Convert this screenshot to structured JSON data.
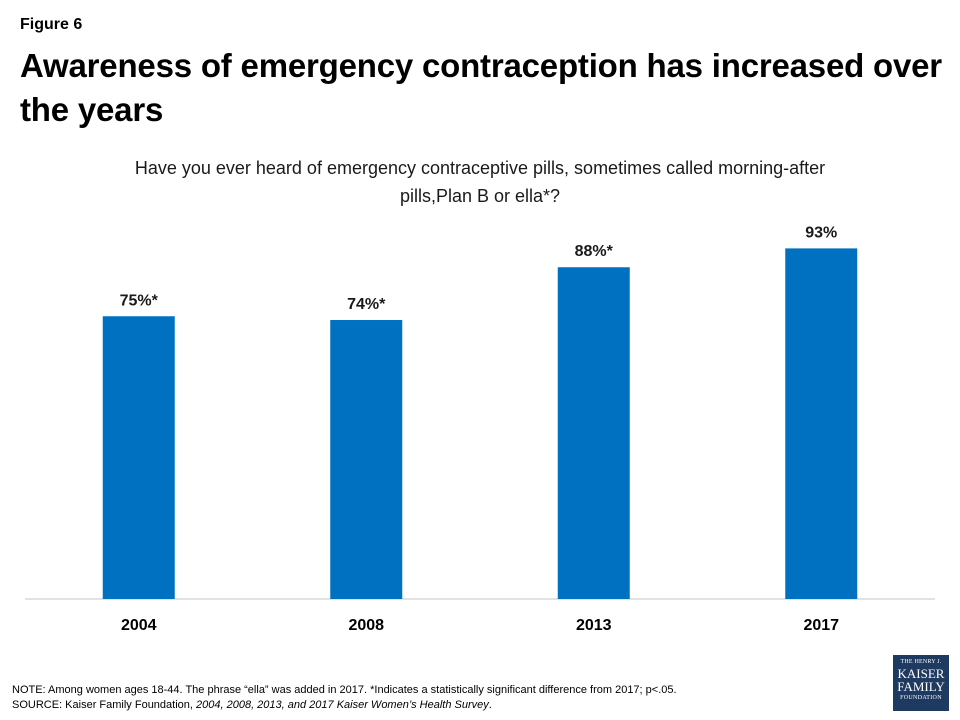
{
  "figure_label": "Figure 6",
  "title": "Awareness of emergency contraception has increased over the years",
  "question": "Have you ever heard of emergency contraceptive pills, sometimes called morning-after pills,Plan B or ella*?",
  "notes": {
    "note": "NOTE: Among women ages 18-44. The phrase “ella” was added in 2017. *Indicates a statistically significant difference from 2017; p<.05.",
    "source_prefix": "SOURCE: Kaiser Family Foundation, ",
    "source_title": "2004, 2008, 2013, and 2017 Kaiser Women’s Health Survey",
    "source_suffix": "."
  },
  "logo": {
    "line1": "THE HENRY J.",
    "line2": "KAISER",
    "line3": "FAMILY",
    "line4": "FOUNDATION"
  },
  "chart_data": {
    "type": "bar",
    "categories": [
      "2004",
      "2008",
      "2013",
      "2017"
    ],
    "values": [
      75,
      74,
      88,
      93
    ],
    "data_labels": [
      "75%*",
      "74%*",
      "88%*",
      "93%"
    ],
    "title": "",
    "xlabel": "",
    "ylabel": "",
    "ylim": [
      0,
      100
    ],
    "grid": false,
    "bar_color": "#0070c0",
    "axis_color": "#d9d9d9"
  }
}
